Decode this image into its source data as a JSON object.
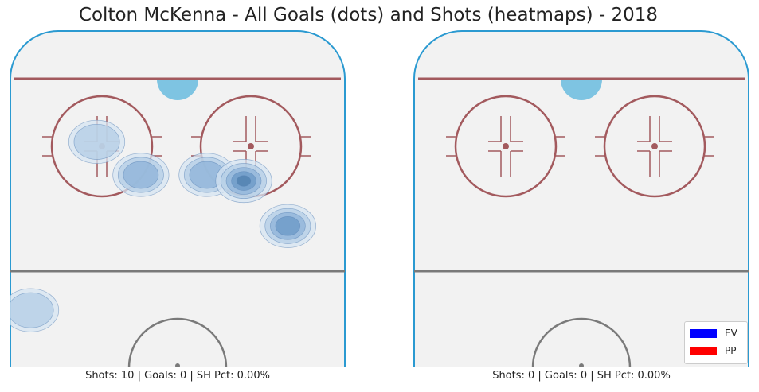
{
  "figure": {
    "title": "Colton McKenna - All Goals (dots) and Shots (heatmaps) - 2018"
  },
  "colors": {
    "boards": "#2b9ad1",
    "ice": "#f2f2f2",
    "goal_line": "#a35a5e",
    "faceoff": "#a35a5e",
    "blue_line": "#7a7a7a",
    "crease": "#7ec4e2",
    "heat": [
      "#d6e4f1",
      "#b3cde6",
      "#8db3d8",
      "#6a98c5",
      "#4f7fae"
    ]
  },
  "chart_data": [
    {
      "type": "heatmap",
      "panel": "left",
      "caption": "Shots: 10 | Goals: 0 | SH Pct: 0.00%",
      "shots": 10,
      "goals": 0,
      "sh_pct": "0.00%",
      "goal_points": [],
      "shot_density": [
        {
          "x": -22,
          "y": 68,
          "level": 2
        },
        {
          "x": -10,
          "y": 57,
          "level": 3
        },
        {
          "x": 8,
          "y": 57,
          "level": 3
        },
        {
          "x": 18,
          "y": 55,
          "level": 5
        },
        {
          "x": 30,
          "y": 40,
          "level": 4
        },
        {
          "x": -40,
          "y": 12,
          "level": 2
        }
      ],
      "xlim": [
        -42.5,
        42.5
      ],
      "ylim": [
        0,
        89
      ]
    },
    {
      "type": "heatmap",
      "panel": "right",
      "caption": "Shots: 0 | Goals: 0 | SH Pct: 0.00%",
      "shots": 0,
      "goals": 0,
      "sh_pct": "0.00%",
      "goal_points": [],
      "shot_density": [],
      "xlim": [
        -42.5,
        42.5
      ],
      "ylim": [
        0,
        89
      ]
    }
  ],
  "legend": {
    "items": [
      {
        "label": "EV",
        "color": "#0000ff"
      },
      {
        "label": "PP",
        "color": "#ff0000"
      }
    ],
    "position": "bottom-right"
  }
}
